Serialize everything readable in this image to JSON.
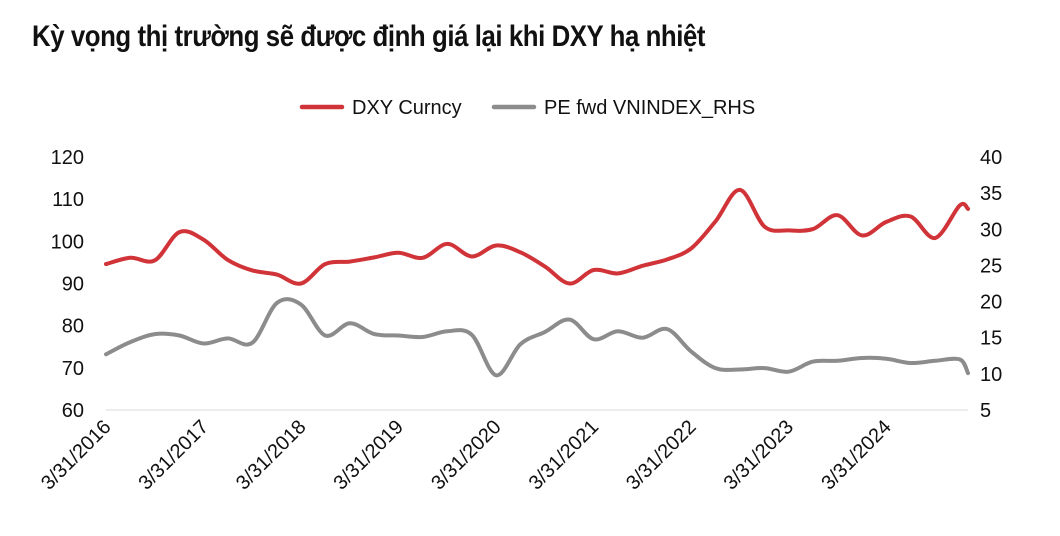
{
  "chart_data": {
    "type": "line",
    "title": "Kỳ vọng thị trường sẽ được định giá lại khi DXY hạ nhiệt",
    "x_ticks": [
      "3/31/2016",
      "3/31/2017",
      "3/31/2018",
      "3/31/2019",
      "3/31/2020",
      "3/31/2021",
      "3/31/2022",
      "3/31/2023",
      "3/31/2024"
    ],
    "y_left": {
      "ticks": [
        "60",
        "70",
        "80",
        "90",
        "100",
        "110",
        "120"
      ],
      "range": [
        60,
        120
      ]
    },
    "y_right": {
      "ticks": [
        "5",
        "10",
        "15",
        "20",
        "25",
        "30",
        "35",
        "40"
      ],
      "range": [
        5,
        40
      ]
    },
    "legend_position": "top-center",
    "grid": false,
    "series": [
      {
        "name": "DXY Curncy",
        "axis": "left",
        "color": "#d13438",
        "points": [
          [
            "2016-03-31",
            94.6
          ],
          [
            "2016-06-30",
            96.1
          ],
          [
            "2016-09-30",
            95.5
          ],
          [
            "2016-12-31",
            102.2
          ],
          [
            "2017-03-31",
            100.4
          ],
          [
            "2017-06-30",
            95.6
          ],
          [
            "2017-09-30",
            93.1
          ],
          [
            "2017-12-31",
            92.1
          ],
          [
            "2018-03-31",
            90.0
          ],
          [
            "2018-06-30",
            94.6
          ],
          [
            "2018-09-30",
            95.2
          ],
          [
            "2018-12-31",
            96.2
          ],
          [
            "2019-03-31",
            97.3
          ],
          [
            "2019-06-30",
            96.1
          ],
          [
            "2019-09-30",
            99.4
          ],
          [
            "2019-12-31",
            96.4
          ],
          [
            "2020-03-31",
            99.0
          ],
          [
            "2020-06-30",
            97.4
          ],
          [
            "2020-09-30",
            94.0
          ],
          [
            "2020-12-31",
            90.0
          ],
          [
            "2021-03-31",
            93.2
          ],
          [
            "2021-06-30",
            92.4
          ],
          [
            "2021-09-30",
            94.2
          ],
          [
            "2021-12-31",
            95.7
          ],
          [
            "2022-03-31",
            98.3
          ],
          [
            "2022-06-30",
            104.7
          ],
          [
            "2022-09-30",
            112.2
          ],
          [
            "2022-12-31",
            103.5
          ],
          [
            "2023-03-31",
            102.6
          ],
          [
            "2023-06-30",
            102.9
          ],
          [
            "2023-09-30",
            106.2
          ],
          [
            "2023-12-31",
            101.4
          ],
          [
            "2024-03-31",
            104.6
          ],
          [
            "2024-06-30",
            105.9
          ],
          [
            "2024-09-30",
            100.8
          ],
          [
            "2024-12-31",
            108.5
          ],
          [
            "2025-01-31",
            107.7
          ]
        ]
      },
      {
        "name": "PE fwd VNINDEX_RHS",
        "axis": "right",
        "color": "#8c8c8c",
        "points": [
          [
            "2016-03-31",
            12.7
          ],
          [
            "2016-06-30",
            14.4
          ],
          [
            "2016-09-30",
            15.5
          ],
          [
            "2016-12-31",
            15.3
          ],
          [
            "2017-03-31",
            14.2
          ],
          [
            "2017-06-30",
            14.9
          ],
          [
            "2017-09-30",
            14.3
          ],
          [
            "2017-12-31",
            19.8
          ],
          [
            "2018-03-31",
            19.6
          ],
          [
            "2018-06-30",
            15.3
          ],
          [
            "2018-09-30",
            17.0
          ],
          [
            "2018-12-31",
            15.5
          ],
          [
            "2019-03-31",
            15.3
          ],
          [
            "2019-06-30",
            15.1
          ],
          [
            "2019-09-30",
            15.9
          ],
          [
            "2019-12-31",
            15.4
          ],
          [
            "2020-03-31",
            9.8
          ],
          [
            "2020-06-30",
            14.1
          ],
          [
            "2020-09-30",
            15.8
          ],
          [
            "2020-12-31",
            17.5
          ],
          [
            "2021-03-31",
            14.8
          ],
          [
            "2021-06-30",
            15.9
          ],
          [
            "2021-09-30",
            15.0
          ],
          [
            "2021-12-31",
            16.2
          ],
          [
            "2022-03-31",
            13.1
          ],
          [
            "2022-06-30",
            10.8
          ],
          [
            "2022-09-30",
            10.6
          ],
          [
            "2022-12-31",
            10.8
          ],
          [
            "2023-03-31",
            10.3
          ],
          [
            "2023-06-30",
            11.7
          ],
          [
            "2023-09-30",
            11.8
          ],
          [
            "2023-12-31",
            12.2
          ],
          [
            "2024-03-31",
            12.1
          ],
          [
            "2024-06-30",
            11.5
          ],
          [
            "2024-09-30",
            11.8
          ],
          [
            "2024-12-31",
            12.0
          ],
          [
            "2025-01-31",
            10.1
          ]
        ]
      }
    ]
  }
}
